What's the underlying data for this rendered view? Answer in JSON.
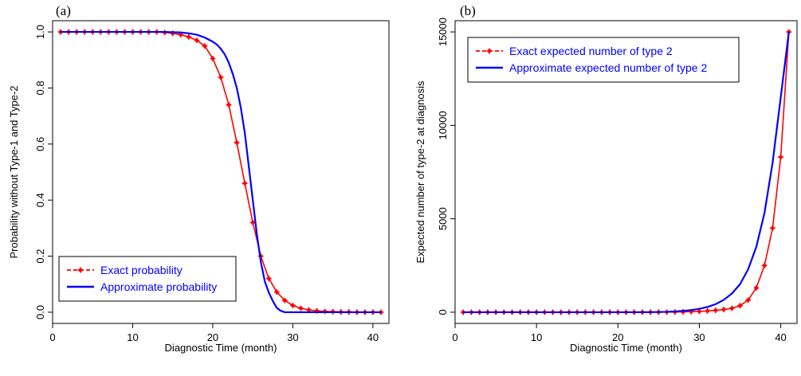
{
  "chart_data": [
    {
      "panel_label": "(a)",
      "type": "line",
      "xlabel": "Diagnostic Time (month)",
      "ylabel": "Probability without Type-1 and Type-2",
      "xlim": [
        0,
        42
      ],
      "ylim": [
        -0.04,
        1.04
      ],
      "xticks": [
        0,
        10,
        20,
        30,
        40
      ],
      "yticks": [
        0.0,
        0.2,
        0.4,
        0.6,
        0.8,
        1.0
      ],
      "ytick_labels": [
        "0.0",
        "0.2",
        "0.4",
        "0.6",
        "0.8",
        "1.0"
      ],
      "grid": false,
      "legend_position": "bottom-left",
      "series": [
        {
          "name": "Exact probability",
          "color": "#ff0000",
          "style": "dashed-markers",
          "x": [
            1,
            2,
            3,
            4,
            5,
            6,
            7,
            8,
            9,
            10,
            11,
            12,
            13,
            14,
            15,
            16,
            17,
            18,
            19,
            20,
            21,
            22,
            23,
            24,
            25,
            26,
            27,
            28,
            29,
            30,
            31,
            32,
            33,
            34,
            35,
            36,
            37,
            38,
            39,
            40,
            41
          ],
          "y": [
            1.0,
            1.0,
            1.0,
            1.0,
            1.0,
            1.0,
            1.0,
            1.0,
            1.0,
            1.0,
            1.0,
            1.0,
            1.0,
            0.998,
            0.995,
            0.99,
            0.982,
            0.97,
            0.95,
            0.905,
            0.838,
            0.74,
            0.605,
            0.46,
            0.32,
            0.2,
            0.12,
            0.072,
            0.042,
            0.024,
            0.014,
            0.008,
            0.005,
            0.003,
            0.002,
            0.001,
            0.001,
            0.0,
            0.0,
            0.0,
            0.0
          ]
        },
        {
          "name": "Approximate probability",
          "color": "#0000ff",
          "style": "solid",
          "x": [
            1,
            5,
            10,
            14,
            16,
            17,
            18,
            19,
            20,
            20.5,
            21,
            21.5,
            22,
            22.5,
            23,
            23.5,
            24,
            24.5,
            25,
            25.5,
            26,
            26.5,
            27,
            27.5,
            28,
            28.5,
            29,
            30,
            35,
            41
          ],
          "y": [
            1.0,
            1.0,
            1.0,
            1.0,
            0.998,
            0.995,
            0.99,
            0.98,
            0.965,
            0.955,
            0.94,
            0.92,
            0.89,
            0.85,
            0.8,
            0.73,
            0.64,
            0.52,
            0.4,
            0.28,
            0.18,
            0.11,
            0.07,
            0.04,
            0.015,
            0.005,
            0.0,
            0.0,
            0.0,
            0.0
          ]
        }
      ]
    },
    {
      "panel_label": "(b)",
      "type": "line",
      "xlabel": "Diagnostic Time (month)",
      "ylabel": "Expected number of type-2 at diagnosis",
      "xlim": [
        0,
        42
      ],
      "ylim": [
        -600,
        15600
      ],
      "xticks": [
        0,
        10,
        20,
        30,
        40
      ],
      "yticks": [
        0,
        5000,
        10000,
        15000
      ],
      "ytick_labels": [
        "0",
        "5000",
        "10000",
        "15000"
      ],
      "grid": false,
      "legend_position": "top-left",
      "series": [
        {
          "name": "Exact expected number of  type 2",
          "color": "#ff0000",
          "style": "dashed-markers",
          "x": [
            1,
            2,
            3,
            4,
            5,
            6,
            7,
            8,
            9,
            10,
            11,
            12,
            13,
            14,
            15,
            16,
            17,
            18,
            19,
            20,
            21,
            22,
            23,
            24,
            25,
            26,
            27,
            28,
            29,
            30,
            31,
            32,
            33,
            34,
            35,
            36,
            37,
            38,
            39,
            40,
            41
          ],
          "y": [
            0,
            0,
            0,
            0,
            0,
            0,
            0,
            0,
            0,
            0,
            0,
            0,
            0,
            0,
            0,
            0,
            0,
            0,
            0,
            0,
            0,
            0,
            1,
            2,
            4,
            7,
            12,
            20,
            30,
            45,
            70,
            100,
            145,
            210,
            350,
            650,
            1300,
            2500,
            4500,
            8300,
            15000
          ]
        },
        {
          "name": "Approximate expected number of  type 2",
          "color": "#0000ff",
          "style": "solid",
          "x": [
            1,
            5,
            10,
            15,
            20,
            24,
            26,
            27,
            28,
            29,
            30,
            31,
            32,
            33,
            34,
            35,
            36,
            37,
            38,
            39,
            40,
            41
          ],
          "y": [
            0,
            0,
            0,
            0,
            0,
            5,
            20,
            40,
            70,
            110,
            180,
            280,
            430,
            660,
            1000,
            1500,
            2300,
            3500,
            5300,
            8000,
            11500,
            15000
          ]
        }
      ]
    }
  ]
}
